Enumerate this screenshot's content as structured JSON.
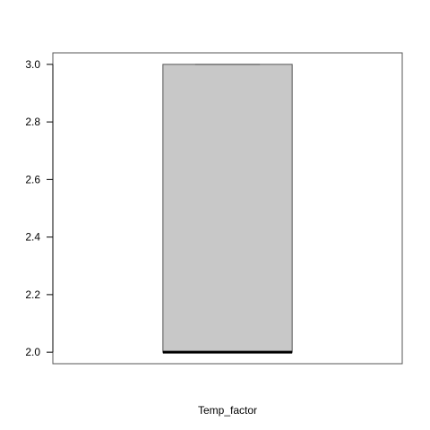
{
  "chart_data": {
    "type": "box",
    "title": "",
    "xlabel": "Temp_factor",
    "ylabel": "",
    "ylim": [
      1.96,
      3.04
    ],
    "yticks": [
      2.0,
      2.2,
      2.4,
      2.6,
      2.8,
      3.0
    ],
    "ytick_labels": [
      "2.0",
      "2.2",
      "2.4",
      "2.6",
      "2.8",
      "3.0"
    ],
    "grid": false,
    "series": [
      {
        "min": 2.0,
        "q1": 2.0,
        "median": 2.0,
        "q3": 3.0,
        "max": 3.0
      }
    ],
    "colors": {
      "box_fill": "#c8c8c8",
      "box_stroke": "#555555",
      "median": "#000000",
      "frame": "#555555"
    }
  }
}
